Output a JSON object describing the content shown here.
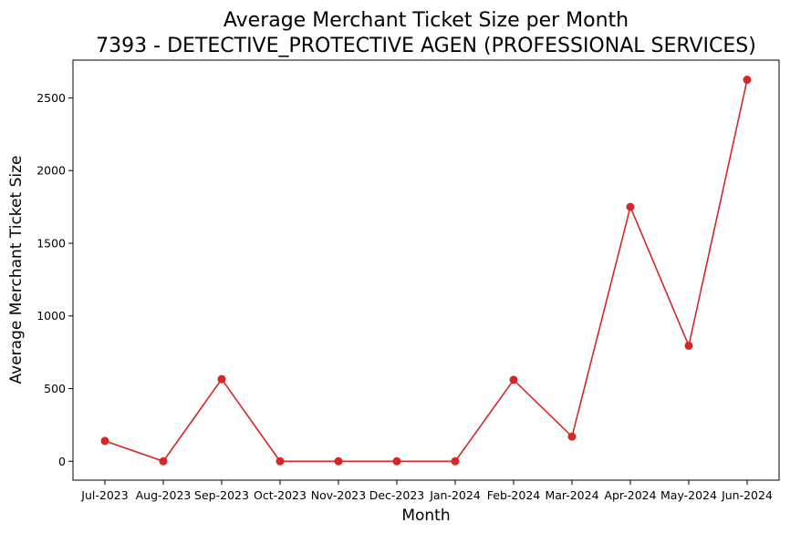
{
  "chart_data": {
    "type": "line",
    "title": "Average Merchant Ticket Size per Month",
    "subtitle": "7393 - DETECTIVE_PROTECTIVE AGEN (PROFESSIONAL SERVICES)",
    "xlabel": "Month",
    "ylabel": "Average Merchant Ticket Size",
    "categories": [
      "Jul-2023",
      "Aug-2023",
      "Sep-2023",
      "Oct-2023",
      "Nov-2023",
      "Dec-2023",
      "Jan-2024",
      "Feb-2024",
      "Mar-2024",
      "Apr-2024",
      "May-2024",
      "Jun-2024"
    ],
    "series": [
      {
        "values": [
          140,
          0,
          565,
          0,
          0,
          0,
          0,
          560,
          170,
          1750,
          795,
          2625
        ]
      }
    ],
    "yticks": [
      0,
      500,
      1000,
      1500,
      2000,
      2500
    ],
    "ylim": [
      -130,
      2760
    ],
    "grid": false,
    "legend": "none",
    "colors": {
      "line": "#d62728",
      "marker": "#d62728"
    }
  }
}
